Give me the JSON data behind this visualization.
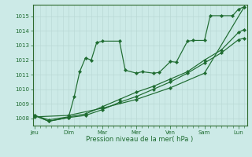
{
  "xlabel": "Pression niveau de la mer( hPa )",
  "bg_color": "#cceae7",
  "grid_color": "#b8d8d4",
  "line_color": "#1e6b30",
  "ylim": [
    1007.5,
    1015.8
  ],
  "yticks": [
    1008,
    1009,
    1010,
    1011,
    1012,
    1013,
    1014,
    1015
  ],
  "xlim": [
    -0.05,
    6.25
  ],
  "day_positions": [
    0,
    1,
    2,
    3,
    4,
    5,
    6
  ],
  "day_labels": [
    "Jeu",
    "Dim",
    "Mar",
    "Mer",
    "Ven",
    "Sam",
    "Lun"
  ],
  "series1_x": [
    0.0,
    0.42,
    1.0,
    1.17,
    1.33,
    1.5,
    1.67,
    1.83,
    2.0,
    2.5,
    2.67,
    3.0,
    3.17,
    3.5,
    3.67,
    4.0,
    4.17,
    4.5,
    4.67,
    5.0,
    5.17,
    5.5,
    5.83,
    6.0,
    6.17
  ],
  "series1_y": [
    1008.2,
    1007.8,
    1008.05,
    1009.5,
    1011.2,
    1012.15,
    1012.0,
    1013.2,
    1013.3,
    1013.3,
    1011.3,
    1011.1,
    1011.2,
    1011.1,
    1011.15,
    1011.9,
    1011.85,
    1013.3,
    1013.35,
    1013.35,
    1015.05,
    1015.05,
    1015.05,
    1015.5,
    1015.65
  ],
  "series2_x": [
    0.0,
    0.42,
    1.0,
    1.5,
    2.0,
    2.5,
    3.0,
    3.5,
    4.0,
    4.5,
    5.0,
    5.5,
    6.0,
    6.17
  ],
  "series2_y": [
    1008.2,
    1007.8,
    1008.05,
    1008.2,
    1008.6,
    1009.1,
    1009.5,
    1010.0,
    1010.5,
    1011.1,
    1011.8,
    1012.5,
    1013.4,
    1013.5
  ],
  "series3_x": [
    0.0,
    0.42,
    1.0,
    1.5,
    2.0,
    2.5,
    3.0,
    3.5,
    4.0,
    4.5,
    5.0,
    5.5,
    6.0,
    6.17
  ],
  "series3_y": [
    1008.2,
    1007.9,
    1008.1,
    1008.3,
    1008.8,
    1009.3,
    1009.8,
    1010.2,
    1010.7,
    1011.2,
    1012.0,
    1012.7,
    1013.9,
    1014.1
  ],
  "series4_x": [
    0.0,
    1.0,
    2.0,
    3.0,
    4.0,
    5.0,
    6.17
  ],
  "series4_y": [
    1008.1,
    1008.2,
    1008.7,
    1009.3,
    1010.1,
    1011.1,
    1015.65
  ],
  "marker_size": 2.2,
  "linewidth": 0.85
}
